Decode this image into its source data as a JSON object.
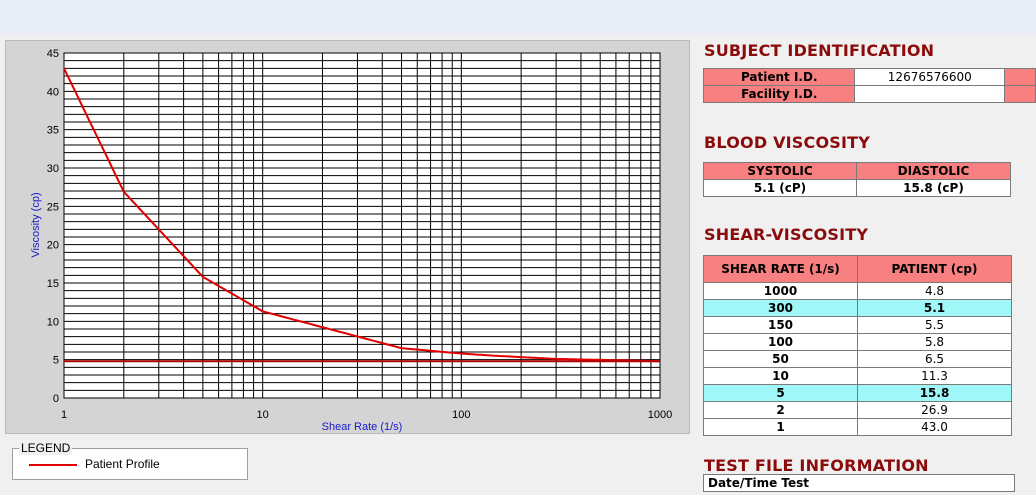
{
  "chart_data": {
    "type": "line",
    "xscale": "log",
    "xlim": [
      1,
      1000
    ],
    "ylim": [
      0,
      45
    ],
    "xlabel": "Shear Rate (1/s)",
    "ylabel": "Viscosity (cp)",
    "x_ticks": [
      "1",
      "10",
      "100",
      "1000"
    ],
    "y_ticks": [
      "0",
      "5",
      "10",
      "15",
      "20",
      "25",
      "30",
      "35",
      "40",
      "45"
    ],
    "grid": true,
    "series": [
      {
        "name": "Patient Profile",
        "color": "#e00000",
        "x": [
          1,
          2,
          5,
          10,
          50,
          100,
          150,
          300,
          1000
        ],
        "y": [
          43.0,
          26.9,
          15.8,
          11.3,
          6.5,
          5.8,
          5.5,
          5.1,
          4.8
        ]
      },
      {
        "name": "",
        "color": "#b00000",
        "x": [
          1,
          1000
        ],
        "y": [
          4.8,
          4.8
        ]
      }
    ]
  },
  "legend": {
    "title": "LEGEND",
    "item": "Patient Profile"
  },
  "subject": {
    "title": "SUBJECT IDENTIFICATION",
    "patient_label": "Patient I.D.",
    "patient_value": "12676576600",
    "facility_label": "Facility I.D.",
    "facility_value": ""
  },
  "blood": {
    "title": "BLOOD VISCOSITY",
    "systolic_label": "SYSTOLIC",
    "diastolic_label": "DIASTOLIC",
    "systolic_value": "5.1 (cP)",
    "diastolic_value": "15.8 (cP)"
  },
  "shear": {
    "title": "SHEAR-VISCOSITY",
    "col1": "SHEAR RATE (1/s)",
    "col2": "PATIENT (cp)",
    "rows": [
      {
        "rate": "1000",
        "value": "4.8"
      },
      {
        "rate": "300",
        "value": "5.1"
      },
      {
        "rate": "150",
        "value": "5.5"
      },
      {
        "rate": "100",
        "value": "5.8"
      },
      {
        "rate": "50",
        "value": "6.5"
      },
      {
        "rate": "10",
        "value": "11.3"
      },
      {
        "rate": "5",
        "value": "15.8"
      },
      {
        "rate": "2",
        "value": "26.9"
      },
      {
        "rate": "1",
        "value": "43.0"
      }
    ]
  },
  "test_file": {
    "title": "TEST FILE INFORMATION",
    "datetime_label": "Date/Time Test"
  }
}
